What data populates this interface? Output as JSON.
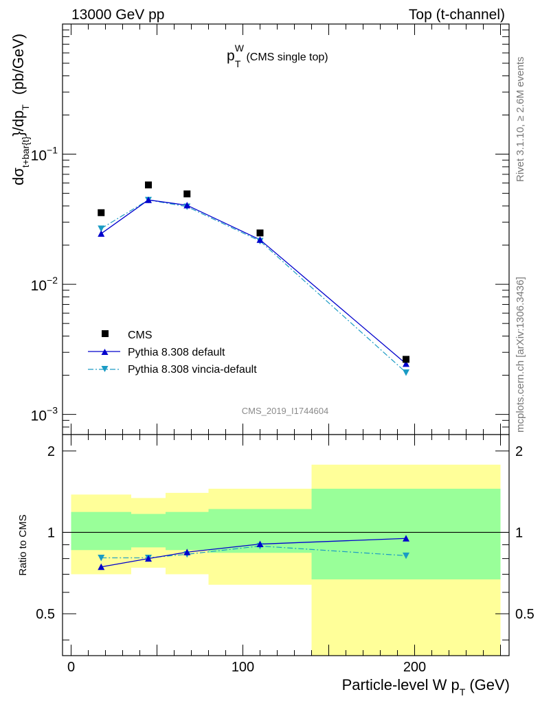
{
  "header": {
    "left": "13000 GeV pp",
    "right": "Top (t-channel)"
  },
  "title": {
    "main": "p",
    "sup": "W",
    "sub": "T",
    "note": "(CMS single top)"
  },
  "side_labels": {
    "rivet": "Rivet 3.1.10, ≥ 2.6M events",
    "mcplots": "mcplots.cern.ch [arXiv:1306.3436]"
  },
  "watermark": "CMS_2019_I1744604",
  "colors": {
    "cms": "#000000",
    "pythia_default": "#0000cc",
    "pythia_vincia": "#1a9bc4",
    "band_inner": "#99ff99",
    "band_outer": "#ffff99"
  },
  "chart_data": [
    {
      "type": "scatter",
      "panel": "main",
      "ylabel": "dσt+bar{t}/dpT (pb/GeV)",
      "ylabel_parts": {
        "d": "d",
        "sigma": "σ",
        "sigma_sub": "t+bar{t}",
        "mid": "}/dp",
        "mid_sub": "T",
        "unit": "(pb/GeV)"
      },
      "yscale": "log",
      "ylim": [
        0.0007,
        1.0
      ],
      "xlim": [
        -5,
        255
      ],
      "y_tick_labels": [
        {
          "value": 0.1,
          "base": "10",
          "exp": "−1"
        },
        {
          "value": 0.01,
          "base": "10",
          "exp": "−2"
        },
        {
          "value": 0.001,
          "base": "10",
          "exp": "−3"
        }
      ],
      "legend_position": "lower-left",
      "series": [
        {
          "name": "CMS",
          "style": "square",
          "x": [
            17.5,
            45,
            67.5,
            110,
            195
          ],
          "y": [
            0.0355,
            0.058,
            0.0495,
            0.0248,
            0.00265
          ]
        },
        {
          "name": "Pythia 8.308 default",
          "style": "solid-triangle-up",
          "x": [
            17.5,
            45,
            67.5,
            110,
            195
          ],
          "y": [
            0.0245,
            0.0445,
            0.0405,
            0.022,
            0.00245
          ]
        },
        {
          "name": "Pythia 8.308 vincia-default",
          "style": "dashdot-triangle-down",
          "x": [
            17.5,
            45,
            67.5,
            110,
            195
          ],
          "y": [
            0.0268,
            0.0445,
            0.0395,
            0.0215,
            0.0021
          ]
        }
      ]
    },
    {
      "type": "line",
      "panel": "ratio",
      "ylabel": "Ratio to CMS",
      "yscale": "log",
      "ylim": [
        0.35,
        2.3
      ],
      "xlim": [
        -5,
        255
      ],
      "y_ticks": [
        0.5,
        1,
        2
      ],
      "y_tick_labels": [
        "0.5",
        "1",
        "2"
      ],
      "x_ticks": [
        0,
        100,
        200
      ],
      "x_tick_labels": [
        "0",
        "100",
        "200"
      ],
      "xlabel": "Particle-level W pT (GeV)",
      "xlabel_parts": {
        "main": "Particle-level W p",
        "sub": "T",
        "unit": "(GeV)"
      },
      "bins": [
        {
          "lo": 0,
          "hi": 35,
          "inner": [
            0.86,
            1.19
          ],
          "outer": [
            0.7,
            1.38
          ]
        },
        {
          "lo": 35,
          "hi": 55,
          "inner": [
            0.88,
            1.17
          ],
          "outer": [
            0.74,
            1.34
          ]
        },
        {
          "lo": 55,
          "hi": 80,
          "inner": [
            0.86,
            1.19
          ],
          "outer": [
            0.7,
            1.4
          ]
        },
        {
          "lo": 80,
          "hi": 140,
          "inner": [
            0.84,
            1.22
          ],
          "outer": [
            0.64,
            1.45
          ]
        },
        {
          "lo": 140,
          "hi": 250,
          "inner": [
            0.67,
            1.45
          ],
          "outer": [
            0.35,
            1.78
          ]
        }
      ],
      "reference": 1,
      "series": [
        {
          "name": "Pythia 8.308 default",
          "x": [
            17.5,
            45,
            67.5,
            110,
            195
          ],
          "y": [
            0.745,
            0.8,
            0.845,
            0.905,
            0.95
          ]
        },
        {
          "name": "Pythia 8.308 vincia-default",
          "x": [
            17.5,
            45,
            67.5,
            110,
            195
          ],
          "y": [
            0.805,
            0.805,
            0.83,
            0.89,
            0.82
          ]
        }
      ]
    }
  ]
}
